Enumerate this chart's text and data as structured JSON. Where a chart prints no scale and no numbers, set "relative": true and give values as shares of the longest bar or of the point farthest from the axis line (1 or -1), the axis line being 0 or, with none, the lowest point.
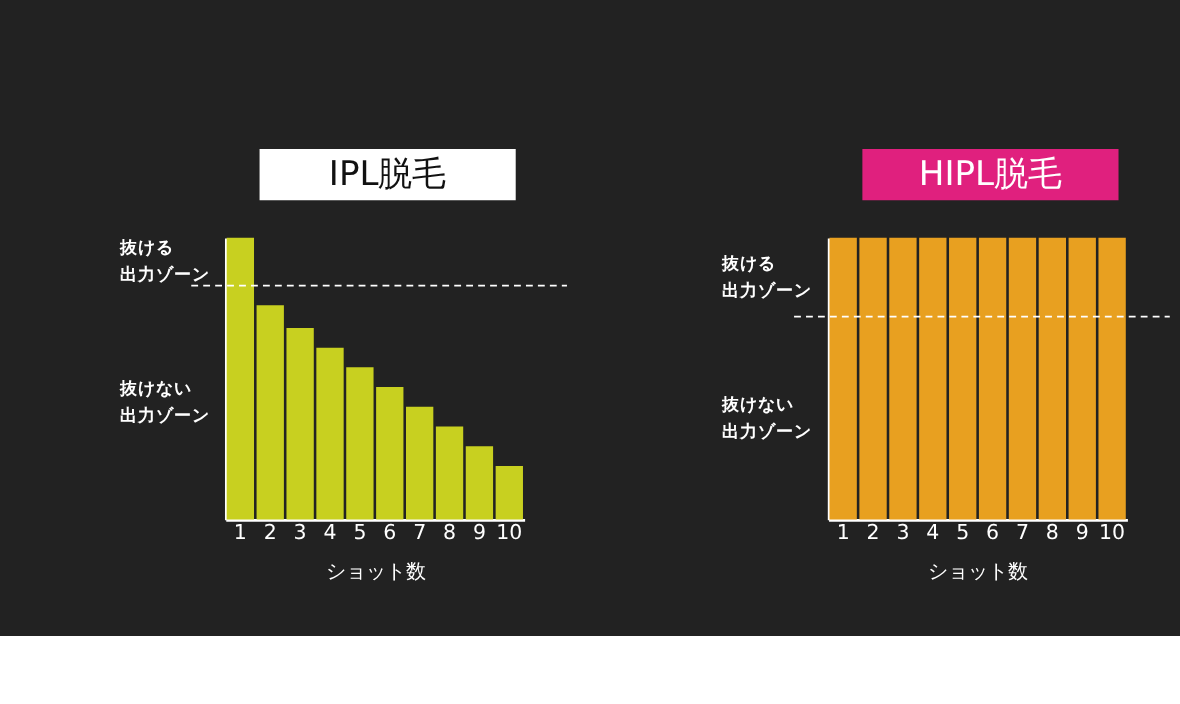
{
  "chart_data": [
    {
      "type": "bar",
      "title": "IPL脱毛",
      "xlabel": "ショット数",
      "categories": [
        "1",
        "2",
        "3",
        "4",
        "5",
        "6",
        "7",
        "8",
        "9",
        "10"
      ],
      "values": [
        1,
        0.76,
        0.68,
        0.61,
        0.54,
        0.47,
        0.4,
        0.33,
        0.26,
        0.19
      ],
      "color": "#c8d020",
      "relative": true,
      "ref_lines": [
        {
          "axis": "y",
          "value": 0.83,
          "line_style": "dashed"
        }
      ],
      "annotations": [
        "抜ける",
        "出力ゾーン",
        "抜けない",
        "出力ゾーン"
      ]
    },
    {
      "type": "bar",
      "title": "HIPL脱毛",
      "xlabel": "ショット数",
      "categories": [
        "1",
        "2",
        "3",
        "4",
        "5",
        "6",
        "7",
        "8",
        "9",
        "10"
      ],
      "values": [
        1,
        1,
        1,
        1,
        1,
        1,
        1,
        1,
        1,
        1
      ],
      "color": "#e8a020",
      "relative": true,
      "ref_lines": [
        {
          "axis": "y",
          "value": 0.72,
          "line_style": "dashed"
        }
      ],
      "annotations": [
        "抜ける",
        "出力ゾーン",
        "抜けない",
        "出力ゾーン"
      ]
    }
  ]
}
